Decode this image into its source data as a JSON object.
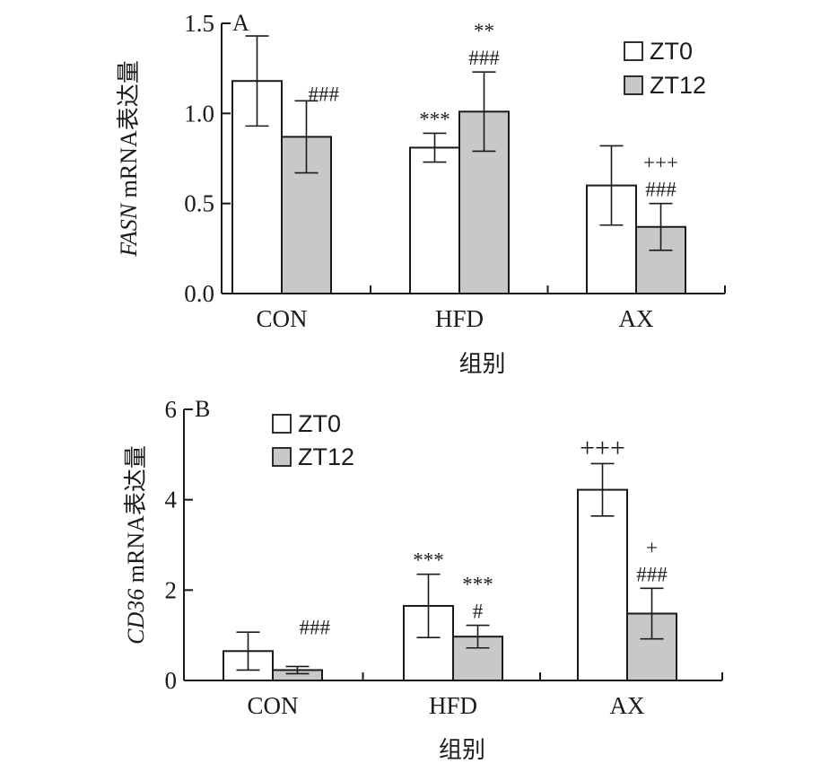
{
  "chart_data": [
    {
      "type": "bar",
      "panel": "A",
      "categories": [
        "CON",
        "HFD",
        "AX"
      ],
      "series": [
        {
          "name": "ZT0",
          "values": [
            1.18,
            0.81,
            0.6
          ],
          "errors": [
            0.25,
            0.08,
            0.22
          ],
          "color": "#ffffff"
        },
        {
          "name": "ZT12",
          "values": [
            0.87,
            1.01,
            0.37
          ],
          "errors": [
            0.2,
            0.22,
            0.13
          ],
          "color": "#c8c8c8"
        }
      ],
      "ylim": [
        0,
        1.5
      ],
      "yticks": [
        0.0,
        0.5,
        1.0,
        1.5
      ],
      "ytick_labels": [
        "0.0",
        "0.5",
        "1.0",
        "1.5"
      ],
      "ylabel_italic": "FASN",
      "ylabel_rest": " mRNA表达量",
      "xlabel": "组别",
      "legend_position": "top-right",
      "annotations": [
        {
          "category": 0,
          "series": 1,
          "lines": [
            "###"
          ]
        },
        {
          "category": 1,
          "series": 0,
          "lines": [
            "***"
          ]
        },
        {
          "category": 1,
          "series": 1,
          "lines": [
            "**",
            "###"
          ]
        },
        {
          "category": 2,
          "series": 1,
          "lines": [
            "+++",
            "###"
          ]
        }
      ]
    },
    {
      "type": "bar",
      "panel": "B",
      "categories": [
        "CON",
        "HFD",
        "AX"
      ],
      "series": [
        {
          "name": "ZT0",
          "values": [
            0.65,
            1.65,
            4.22
          ],
          "errors": [
            0.42,
            0.7,
            0.58
          ],
          "color": "#ffffff"
        },
        {
          "name": "ZT12",
          "values": [
            0.23,
            0.97,
            1.48
          ],
          "errors": [
            0.08,
            0.25,
            0.56
          ],
          "color": "#c8c8c8"
        }
      ],
      "ylim": [
        0,
        6
      ],
      "yticks": [
        0,
        2,
        4,
        6
      ],
      "ytick_labels": [
        "0",
        "2",
        "4",
        "6"
      ],
      "ylabel_italic": "CD36",
      "ylabel_rest": " mRNA表达量",
      "xlabel": "组别",
      "legend_position": "top-left",
      "annotations": [
        {
          "category": 0,
          "series": 1,
          "lines": [
            "###"
          ]
        },
        {
          "category": 1,
          "series": 0,
          "lines": [
            "***"
          ]
        },
        {
          "category": 1,
          "series": 1,
          "lines": [
            "***",
            "#"
          ]
        },
        {
          "category": 2,
          "series": 0,
          "lines": [
            "+++"
          ],
          "big": true
        },
        {
          "category": 2,
          "series": 1,
          "lines": [
            "+",
            "###"
          ]
        }
      ]
    }
  ]
}
